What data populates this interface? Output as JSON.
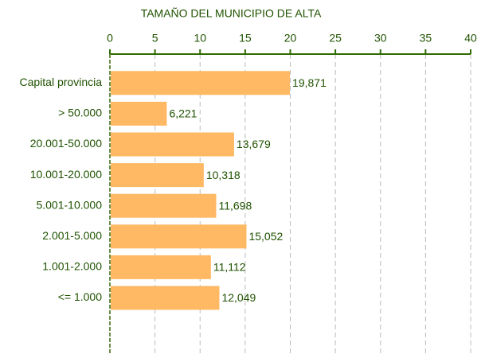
{
  "chart_data": {
    "type": "bar",
    "orientation": "horizontal",
    "title": "TAMAÑO DEL MUNICIPIO DE ALTA",
    "categories": [
      "Capital provincia",
      "> 50.000",
      "20.001-50.000",
      "10.001-20.000",
      "5.001-10.000",
      "2.001-5.000",
      "1.001-2.000",
      "<= 1.000"
    ],
    "values": [
      19.871,
      6.221,
      13.679,
      10.318,
      11.698,
      15.052,
      11.112,
      12.049
    ],
    "value_labels": [
      "19,871",
      "6,221",
      "13,679",
      "10,318",
      "11,698",
      "15,052",
      "11,112",
      "12,049"
    ],
    "color": "#ffb964",
    "xlim": [
      0,
      40
    ],
    "xticks": [
      0,
      5,
      10,
      15,
      20,
      25,
      30,
      35,
      40
    ],
    "grid": true
  }
}
